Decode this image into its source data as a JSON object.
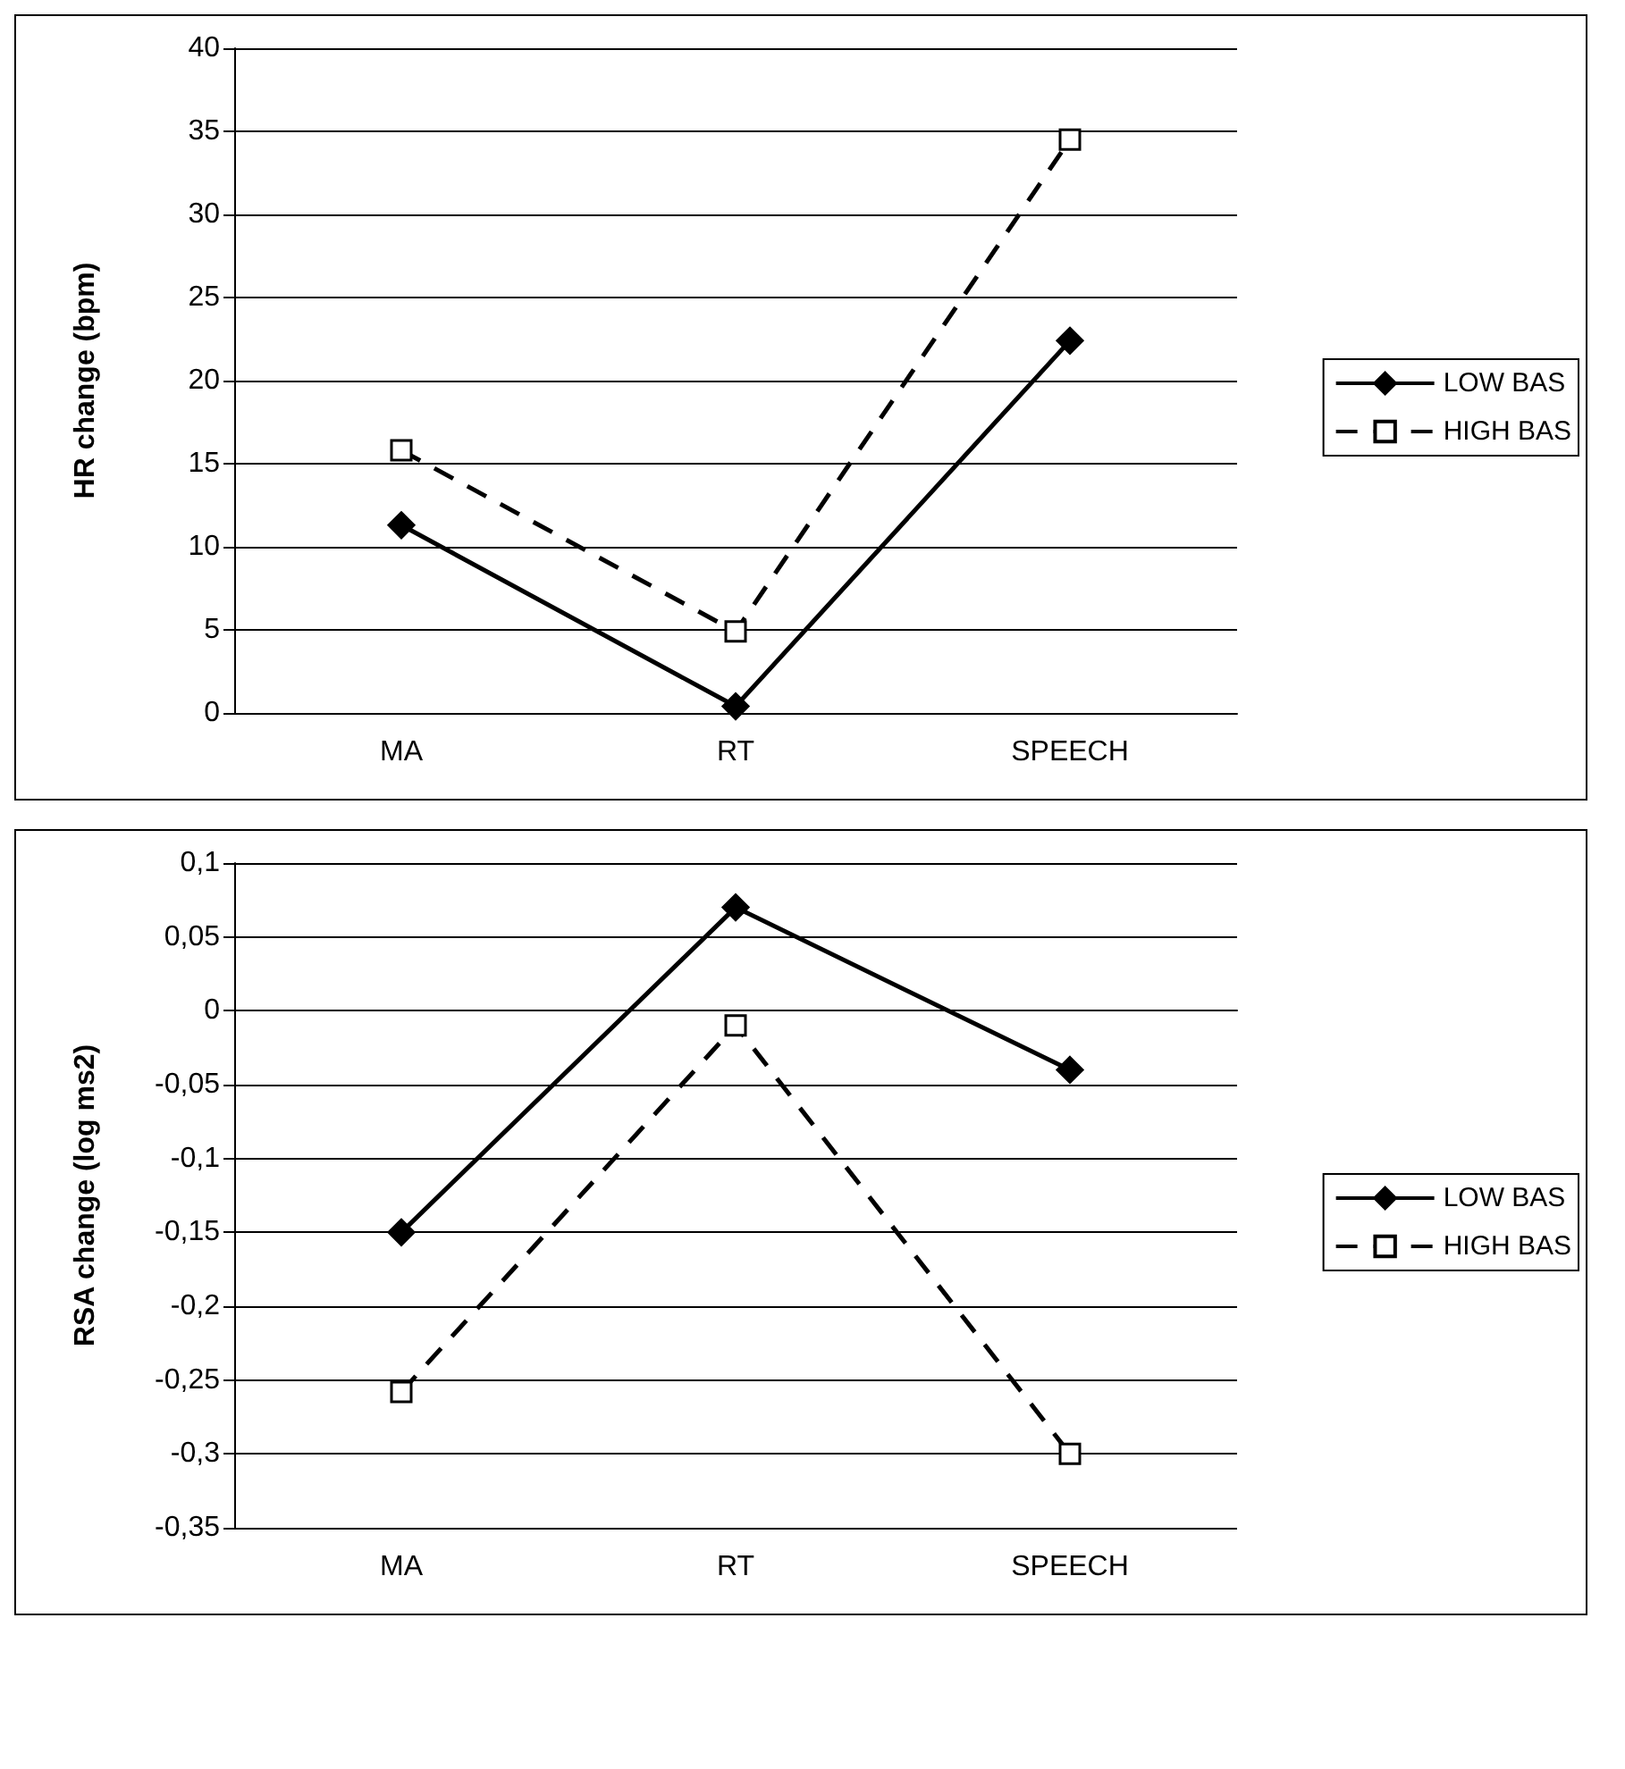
{
  "chart_data": [
    {
      "type": "line",
      "ylabel": "HR change (bpm)",
      "categories": [
        "MA",
        "RT",
        "SPEECH"
      ],
      "ylim": [
        0,
        40
      ],
      "yticks": [
        0,
        5,
        10,
        15,
        20,
        25,
        30,
        35,
        40
      ],
      "grid": "y",
      "legend": "right",
      "series": [
        {
          "name": "LOW BAS",
          "color": "#000000",
          "marker": "diamond",
          "line_style": "solid",
          "values": [
            11.3,
            0.4,
            22.4
          ]
        },
        {
          "name": "HIGH BAS",
          "color": "#000000",
          "marker": "square",
          "line_style": "dashed",
          "values": [
            15.8,
            4.9,
            34.5
          ]
        }
      ]
    },
    {
      "type": "line",
      "ylabel": "RSA change (log ms2)",
      "categories": [
        "MA",
        "RT",
        "SPEECH"
      ],
      "ylim": [
        -0.35,
        0.1
      ],
      "yticks": [
        {
          "value": -0.35,
          "label": "-0,35"
        },
        {
          "value": -0.3,
          "label": "-0,3"
        },
        {
          "value": -0.25,
          "label": "-0,25"
        },
        {
          "value": -0.2,
          "label": "-0,2"
        },
        {
          "value": -0.15,
          "label": "-0,15"
        },
        {
          "value": -0.1,
          "label": "-0,1"
        },
        {
          "value": -0.05,
          "label": "-0,05"
        },
        0,
        {
          "value": 0.05,
          "label": "0,05"
        },
        {
          "value": 0.1,
          "label": "0,1"
        }
      ],
      "grid": "y",
      "legend": "right",
      "series": [
        {
          "name": "LOW BAS",
          "color": "#000000",
          "marker": "diamond",
          "line_style": "solid",
          "values": [
            -0.15,
            0.07,
            -0.04
          ]
        },
        {
          "name": "HIGH BAS",
          "color": "#000000",
          "marker": "square",
          "line_style": "dashed",
          "values": [
            -0.258,
            -0.01,
            -0.3
          ]
        }
      ]
    }
  ]
}
